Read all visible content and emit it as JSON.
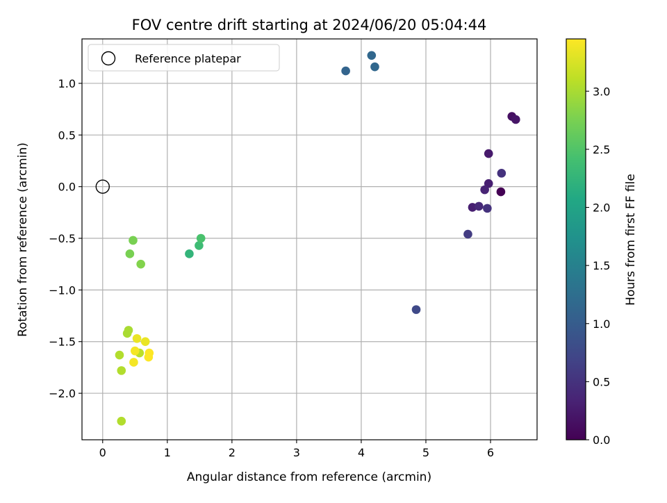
{
  "chart_data": {
    "type": "scatter",
    "title": "FOV centre drift starting at 2024/06/20 05:04:44",
    "xlabel": "Angular distance from reference (arcmin)",
    "ylabel": "Rotation from reference (arcmin)",
    "xlim": [
      -0.32,
      6.72
    ],
    "ylim": [
      -2.45,
      1.43
    ],
    "xticks": [
      0,
      1,
      2,
      3,
      4,
      5,
      6
    ],
    "xtick_labels": [
      "0",
      "1",
      "2",
      "3",
      "4",
      "5",
      "6"
    ],
    "yticks": [
      -2.0,
      -1.5,
      -1.0,
      -0.5,
      0.0,
      0.5,
      1.0
    ],
    "ytick_labels": [
      "−2.0",
      "−1.5",
      "−1.0",
      "−0.5",
      "0.0",
      "0.5",
      "1.0"
    ],
    "grid": true,
    "legend": {
      "placement": "upper left",
      "entries": [
        "Reference platepar"
      ]
    },
    "reference_point": {
      "x": 0.0,
      "y": 0.0,
      "label": "Reference platepar"
    },
    "colorbar": {
      "label": "Hours from first FF file",
      "colormap": "viridis",
      "range": [
        0.0,
        3.45
      ],
      "ticks": [
        0.0,
        0.5,
        1.0,
        1.5,
        2.0,
        2.5,
        3.0
      ],
      "tick_labels": [
        "0.0",
        "0.5",
        "1.0",
        "1.5",
        "2.0",
        "2.5",
        "3.0"
      ]
    },
    "points": [
      {
        "x": 6.16,
        "y": -0.05,
        "hours": 0.0
      },
      {
        "x": 6.33,
        "y": 0.68,
        "hours": 0.15
      },
      {
        "x": 6.39,
        "y": 0.65,
        "hours": 0.2
      },
      {
        "x": 5.97,
        "y": 0.32,
        "hours": 0.25
      },
      {
        "x": 5.97,
        "y": 0.03,
        "hours": 0.3
      },
      {
        "x": 5.91,
        "y": -0.03,
        "hours": 0.35
      },
      {
        "x": 5.72,
        "y": -0.2,
        "hours": 0.3
      },
      {
        "x": 5.82,
        "y": -0.19,
        "hours": 0.4
      },
      {
        "x": 5.95,
        "y": -0.21,
        "hours": 0.5
      },
      {
        "x": 6.17,
        "y": 0.13,
        "hours": 0.5
      },
      {
        "x": 5.65,
        "y": -0.46,
        "hours": 0.6
      },
      {
        "x": 4.85,
        "y": -1.19,
        "hours": 0.75
      },
      {
        "x": 3.76,
        "y": 1.12,
        "hours": 1.1
      },
      {
        "x": 4.16,
        "y": 1.27,
        "hours": 1.15
      },
      {
        "x": 4.21,
        "y": 1.16,
        "hours": 1.15
      },
      {
        "x": 1.34,
        "y": -0.65,
        "hours": 2.25
      },
      {
        "x": 1.49,
        "y": -0.57,
        "hours": 2.35
      },
      {
        "x": 1.52,
        "y": -0.5,
        "hours": 2.45
      },
      {
        "x": 0.42,
        "y": -0.65,
        "hours": 2.75
      },
      {
        "x": 0.47,
        "y": -0.52,
        "hours": 2.75
      },
      {
        "x": 0.59,
        "y": -0.75,
        "hours": 2.8
      },
      {
        "x": 0.4,
        "y": -1.39,
        "hours": 3.0
      },
      {
        "x": 0.38,
        "y": -1.42,
        "hours": 3.0
      },
      {
        "x": 0.26,
        "y": -1.63,
        "hours": 3.05
      },
      {
        "x": 0.29,
        "y": -1.78,
        "hours": 3.05
      },
      {
        "x": 0.29,
        "y": -2.27,
        "hours": 3.05
      },
      {
        "x": 0.57,
        "y": -1.61,
        "hours": 3.1
      },
      {
        "x": 0.53,
        "y": -1.47,
        "hours": 3.35
      },
      {
        "x": 0.66,
        "y": -1.5,
        "hours": 3.35
      },
      {
        "x": 0.5,
        "y": -1.59,
        "hours": 3.4
      },
      {
        "x": 0.48,
        "y": -1.7,
        "hours": 3.4
      },
      {
        "x": 0.72,
        "y": -1.61,
        "hours": 3.45
      },
      {
        "x": 0.71,
        "y": -1.65,
        "hours": 3.45
      }
    ]
  }
}
